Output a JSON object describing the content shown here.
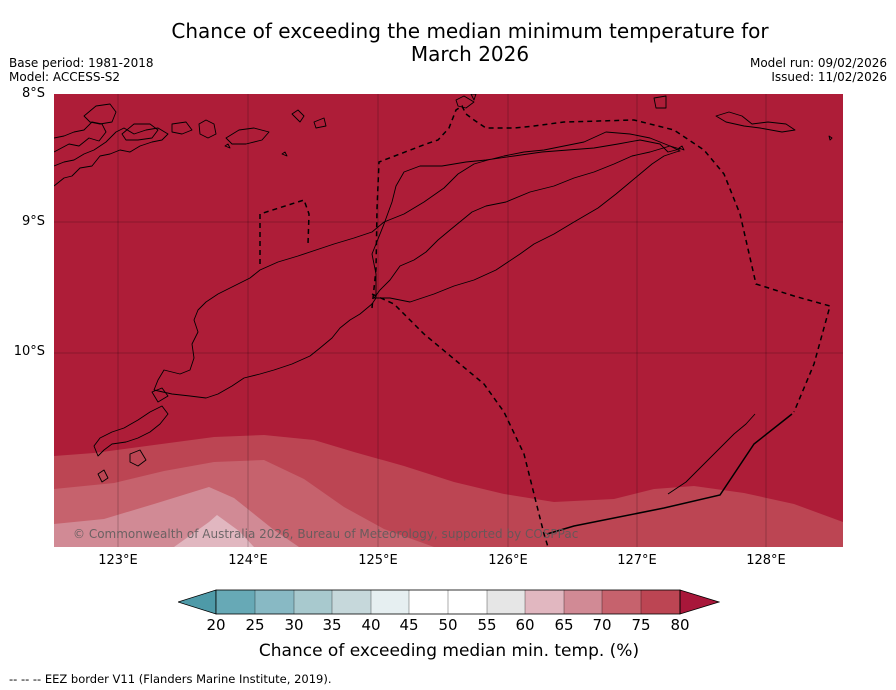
{
  "title": {
    "line1": "Chance of exceeding the median minimum temperature for",
    "line2": "March 2026"
  },
  "meta_left": {
    "base_period": "Base period: 1981-2018",
    "model": "Model: ACCESS-S2"
  },
  "meta_right": {
    "model_run": "Model run: 09/02/2026",
    "issued": "Issued: 11/02/2026"
  },
  "map": {
    "lat_labels": [
      "8°S",
      "9°S",
      "10°S"
    ],
    "lon_labels": [
      "123°E",
      "124°E",
      "125°E",
      "126°E",
      "127°E",
      "128°E"
    ],
    "copyright": "© Commonwealth of Australia 2026, Bureau of Meteorology, supported by COSPPac"
  },
  "colorbar": {
    "ticks": [
      "20",
      "25",
      "30",
      "35",
      "40",
      "45",
      "50",
      "55",
      "60",
      "65",
      "70",
      "75",
      "80"
    ],
    "label": "Chance of exceeding median min. temp. (%)",
    "colors": {
      "below": "#4e9aa8",
      "bins": [
        "#67a9b6",
        "#88b9c4",
        "#a8c9ce",
        "#c6d8db",
        "#e6eff1",
        "#ffffff",
        "#ffffff",
        "#e6e6e6",
        "#e1b7c0",
        "#d18a95",
        "#c6626d",
        "#bc4553"
      ],
      "above": "#a8173a"
    }
  },
  "legend_note": "--  --  -- EEZ border V11 (Flanders Marine Institute, 2019).",
  "colors": {
    "map_base": "#ae1d38",
    "coast": "#000000",
    "eez": "#000000"
  }
}
